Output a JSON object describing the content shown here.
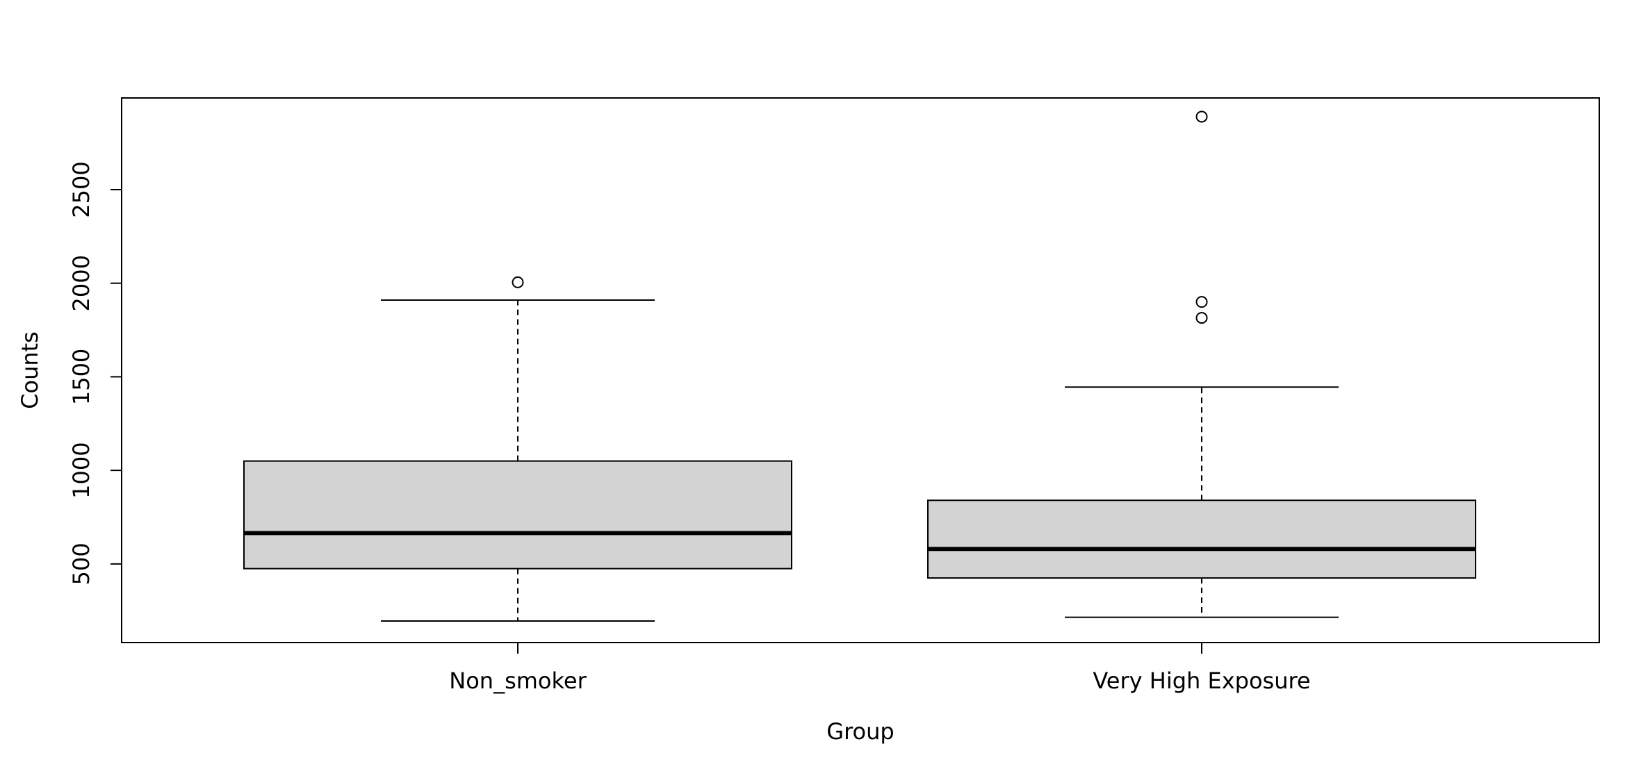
{
  "chart_data": {
    "type": "boxplot",
    "title": "",
    "xlabel": "Group",
    "ylabel": "Counts",
    "ylim": [
      80,
      2990
    ],
    "yticks": [
      500,
      1000,
      1500,
      2000,
      2500
    ],
    "grid": false,
    "legend": "none",
    "categories": [
      "Non_smoker",
      "Very High Exposure"
    ],
    "boxes": [
      {
        "category": "Non_smoker",
        "whisker_low": 195,
        "q1": 475,
        "median": 665,
        "q3": 1050,
        "whisker_high": 1910,
        "outliers": [
          2005
        ]
      },
      {
        "category": "Very High Exposure",
        "whisker_low": 215,
        "q1": 425,
        "median": 580,
        "q3": 840,
        "whisker_high": 1445,
        "outliers": [
          2890,
          1900,
          1815
        ]
      }
    ],
    "colors": {
      "box_fill": "#d3d3d3",
      "stroke": "#000000"
    }
  }
}
